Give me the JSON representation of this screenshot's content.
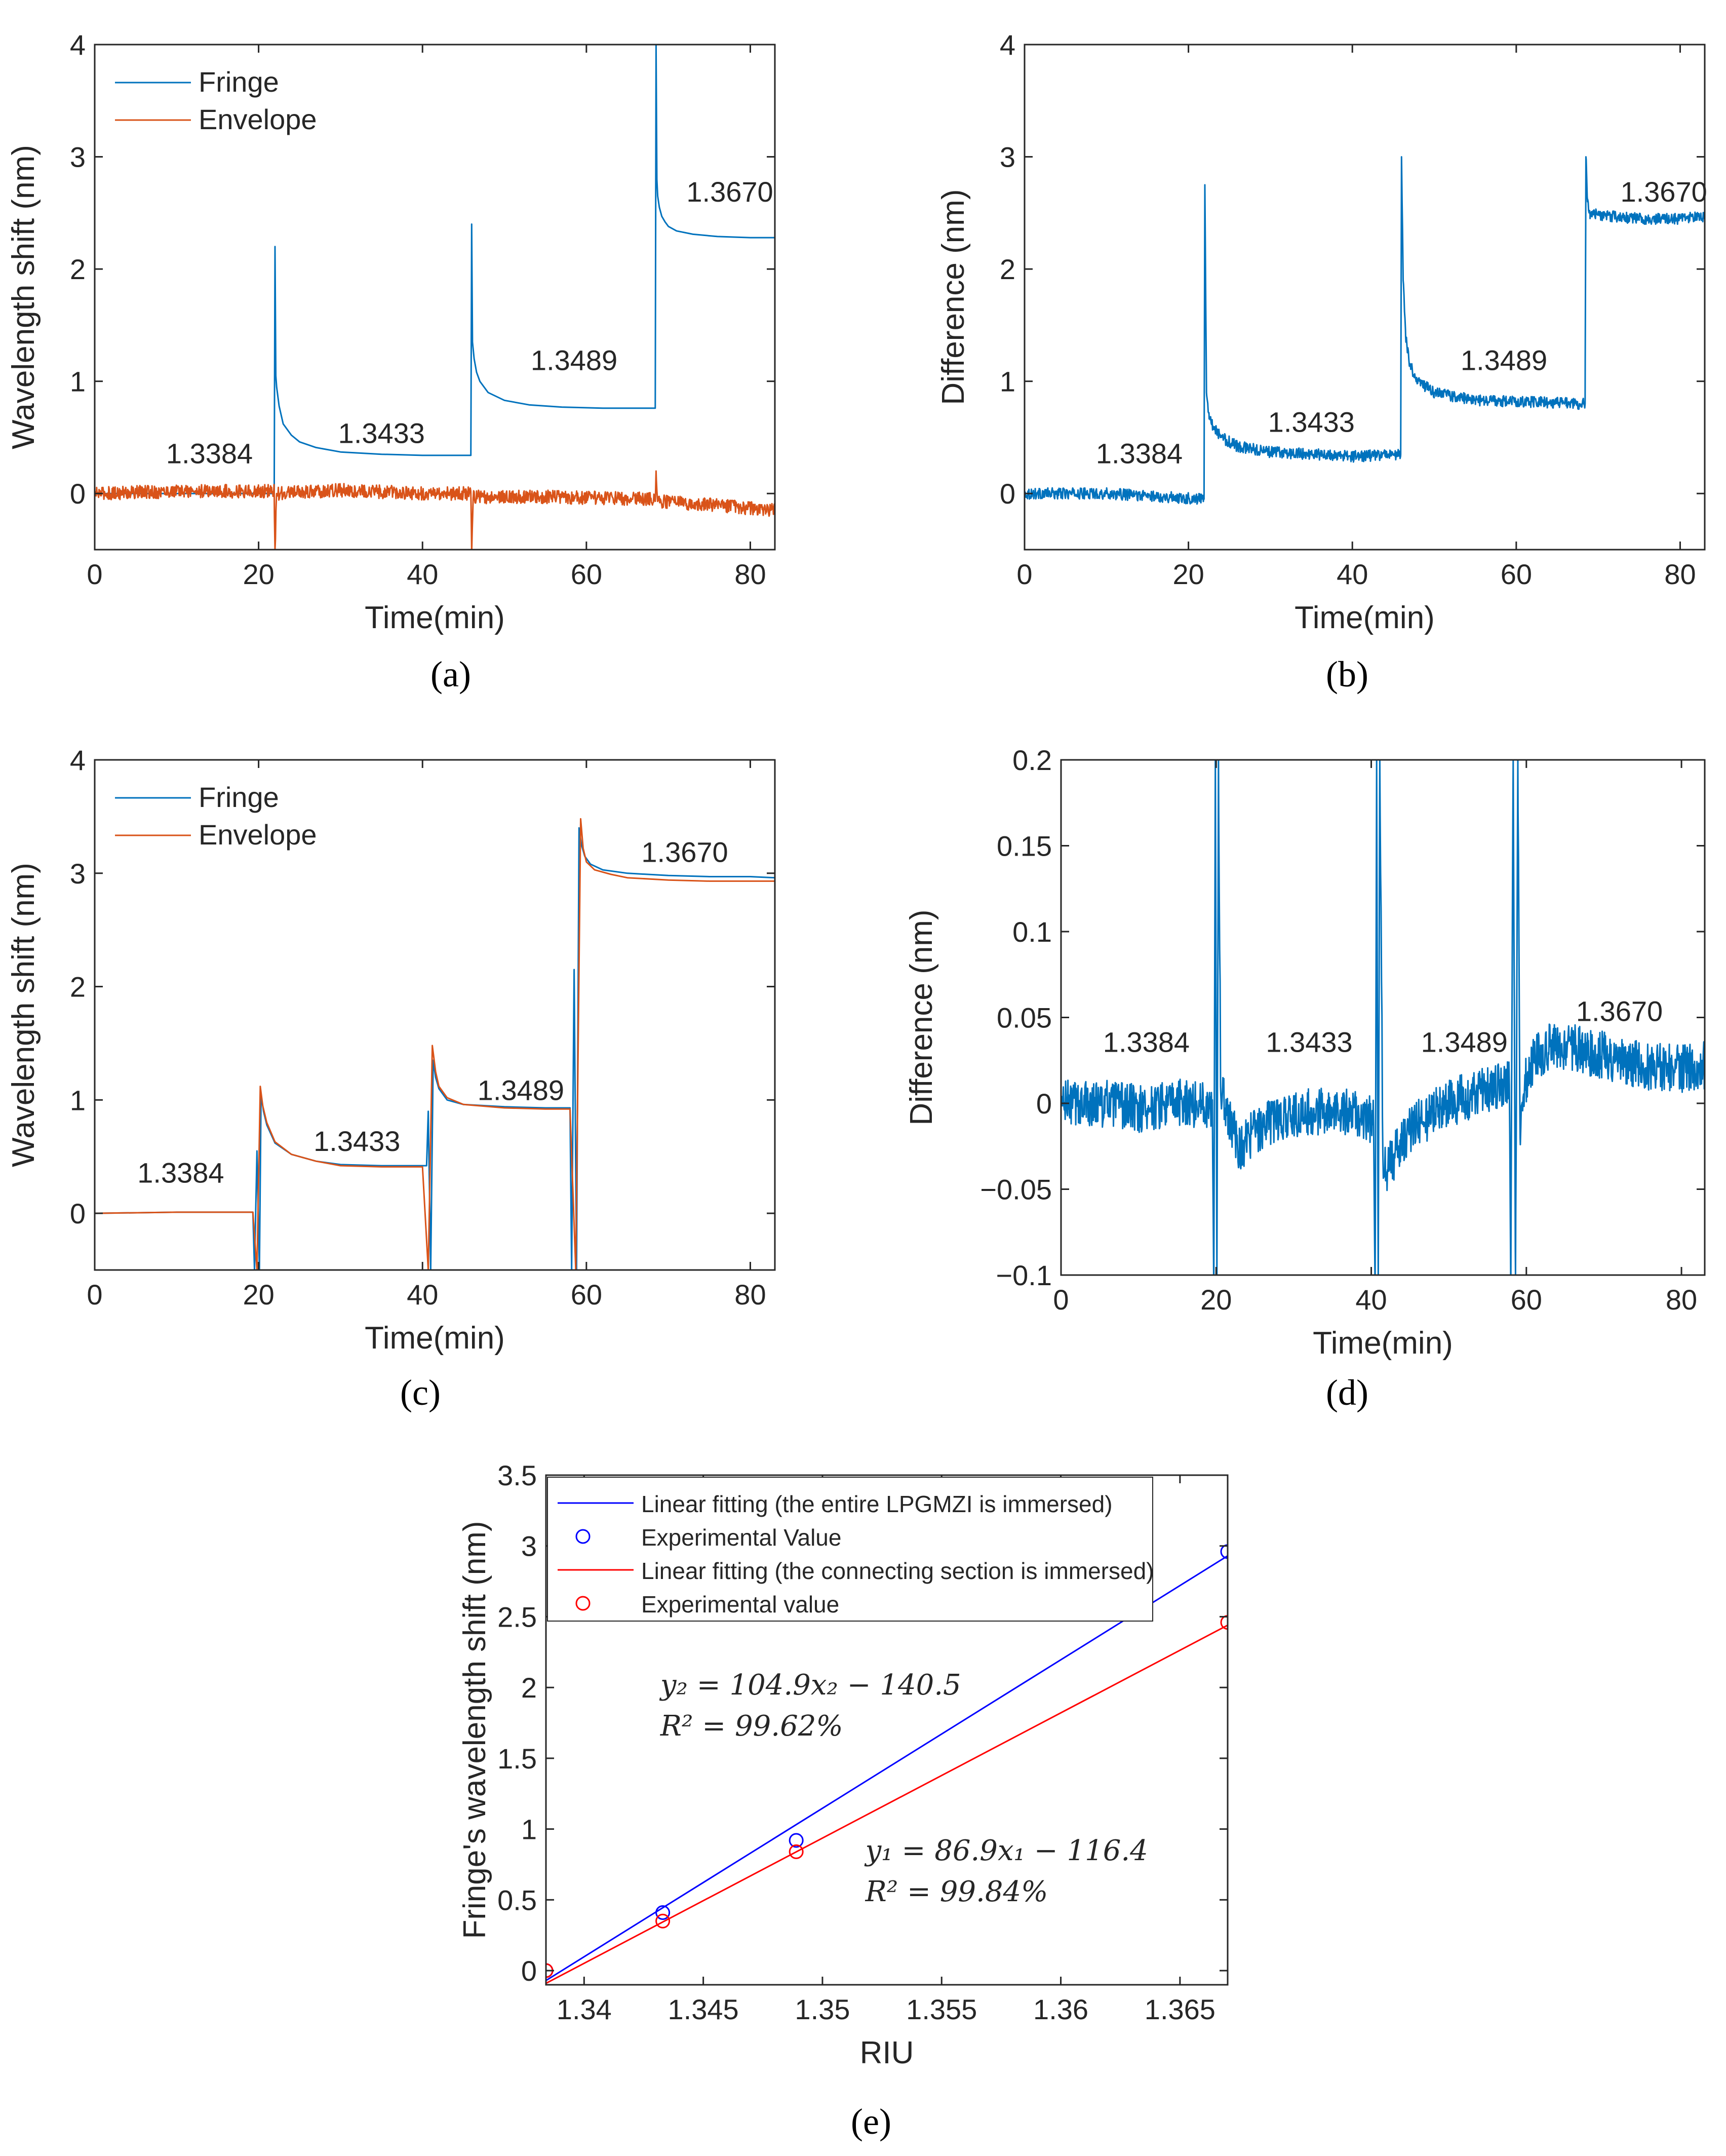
{
  "figure": {
    "captions": [
      {
        "open": "(",
        "letter": "a",
        "close": ")"
      },
      {
        "open": "(",
        "letter": "b",
        "close": ")"
      },
      {
        "open": "(",
        "letter": "c",
        "close": ")"
      },
      {
        "open": "(",
        "letter": "d",
        "close": ")"
      },
      {
        "open": "(",
        "letter": "e",
        "close": ")"
      }
    ]
  },
  "chart_data": [
    {
      "id": "a",
      "type": "line",
      "xlabel": "Time(min)",
      "ylabel": "Wavelength shift (nm)",
      "xlim": [
        0,
        83
      ],
      "ylim": [
        -0.5,
        4
      ],
      "xticks": [
        0,
        20,
        40,
        60,
        80
      ],
      "yticks": [
        0,
        1,
        2,
        3,
        4
      ],
      "grid": false,
      "legend": {
        "position": "top-left",
        "entries": [
          "Fringe",
          "Envelope"
        ]
      },
      "annotations": [
        {
          "text": "1.3384",
          "x": 14,
          "y": 0.27
        },
        {
          "text": "1.3433",
          "x": 35,
          "y": 0.45
        },
        {
          "text": "1.3489",
          "x": 58.5,
          "y": 1.1
        },
        {
          "text": "1.3670",
          "x": 77.5,
          "y": 2.6
        }
      ],
      "series": [
        {
          "name": "Fringe",
          "color": "#0072BD",
          "x": [
            0,
            21.9,
            22.0,
            22.1,
            22.2,
            22.5,
            23,
            24,
            25,
            27,
            30,
            35,
            40,
            45.9,
            46.0,
            46.1,
            46.3,
            46.6,
            47,
            48,
            50,
            53,
            57,
            62,
            67,
            68.4,
            68.5,
            68.6,
            68.7,
            68.9,
            69.2,
            69.6,
            70,
            71,
            73,
            76,
            80,
            83
          ],
          "y": [
            0,
            0,
            2.2,
            1.05,
            0.95,
            0.78,
            0.62,
            0.52,
            0.46,
            0.41,
            0.37,
            0.35,
            0.34,
            0.34,
            2.4,
            1.35,
            1.2,
            1.08,
            1.0,
            0.9,
            0.83,
            0.79,
            0.77,
            0.76,
            0.76,
            0.76,
            4.0,
            2.8,
            2.65,
            2.55,
            2.47,
            2.42,
            2.38,
            2.34,
            2.31,
            2.29,
            2.28,
            2.28
          ]
        },
        {
          "name": "Envelope",
          "color": "#D95319",
          "x": [
            0,
            10,
            21.9,
            22.0,
            22.2,
            30,
            40,
            45.9,
            46.0,
            46.2,
            55,
            68.4,
            68.5,
            68.7,
            75,
            83
          ],
          "y": [
            0.0,
            0.02,
            0.02,
            -0.5,
            0.0,
            0.03,
            0.0,
            0.0,
            -0.5,
            -0.03,
            -0.03,
            -0.05,
            0.2,
            -0.07,
            -0.1,
            -0.15
          ]
        }
      ]
    },
    {
      "id": "b",
      "type": "line",
      "xlabel": "Time(min)",
      "ylabel": "Difference (nm)",
      "xlim": [
        0,
        83
      ],
      "ylim": [
        -0.5,
        4
      ],
      "xticks": [
        0,
        20,
        40,
        60,
        80
      ],
      "yticks": [
        0,
        1,
        2,
        3,
        4
      ],
      "grid": false,
      "annotations": [
        {
          "text": "1.3384",
          "x": 14,
          "y": 0.27
        },
        {
          "text": "1.3433",
          "x": 35,
          "y": 0.55
        },
        {
          "text": "1.3489",
          "x": 58.5,
          "y": 1.1
        },
        {
          "text": "1.3670",
          "x": 78,
          "y": 2.6
        }
      ],
      "series": [
        {
          "name": "Difference",
          "color": "#0072BD",
          "x": [
            0,
            10,
            21.9,
            22.0,
            22.2,
            22.5,
            23,
            24,
            26,
            30,
            35,
            40,
            45.9,
            46.0,
            46.2,
            46.5,
            47,
            48,
            50,
            55,
            60,
            68.4,
            68.5,
            68.7,
            69,
            70,
            75,
            80,
            83
          ],
          "y": [
            0,
            0.0,
            -0.05,
            2.75,
            0.9,
            0.72,
            0.6,
            0.5,
            0.42,
            0.37,
            0.35,
            0.33,
            0.35,
            3.0,
            1.9,
            1.4,
            1.15,
            1.0,
            0.9,
            0.83,
            0.82,
            0.8,
            3.0,
            2.6,
            2.5,
            2.48,
            2.45,
            2.45,
            2.47
          ]
        }
      ]
    },
    {
      "id": "c",
      "type": "line",
      "xlabel": "Time(min)",
      "ylabel": "Wavelength shift (nm)",
      "xlim": [
        0,
        83
      ],
      "ylim": [
        -0.5,
        4
      ],
      "xticks": [
        0,
        20,
        40,
        60,
        80
      ],
      "yticks": [
        0,
        1,
        2,
        3,
        4
      ],
      "grid": false,
      "legend": {
        "position": "top-left",
        "entries": [
          "Fringe",
          "Envelope"
        ]
      },
      "annotations": [
        {
          "text": "1.3384",
          "x": 10.5,
          "y": 0.27
        },
        {
          "text": "1.3433",
          "x": 32,
          "y": 0.55
        },
        {
          "text": "1.3489",
          "x": 52,
          "y": 1.0
        },
        {
          "text": "1.3670",
          "x": 72,
          "y": 3.1
        }
      ],
      "series": [
        {
          "name": "Fringe",
          "color": "#0072BD",
          "x": [
            0,
            10,
            19.3,
            19.5,
            19.8,
            20.1,
            20.3,
            20.6,
            21,
            22,
            24,
            27,
            30,
            35,
            40,
            40.5,
            40.7,
            41.0,
            41.3,
            41.6,
            42,
            43,
            45,
            50,
            55,
            58,
            58.2,
            58.5,
            58.8,
            59.1,
            59.4,
            59.8,
            60.5,
            62,
            65,
            70,
            75,
            80,
            83
          ],
          "y": [
            0,
            0.01,
            0.01,
            -0.5,
            0.55,
            -0.5,
            1.05,
            0.9,
            0.78,
            0.62,
            0.52,
            0.46,
            0.43,
            0.42,
            0.42,
            0.42,
            0.9,
            -0.5,
            1.35,
            1.2,
            1.1,
            1.0,
            0.96,
            0.94,
            0.93,
            0.93,
            -0.5,
            2.15,
            -0.5,
            3.4,
            3.25,
            3.15,
            3.08,
            3.03,
            3.0,
            2.98,
            2.97,
            2.97,
            2.96
          ]
        },
        {
          "name": "Envelope",
          "color": "#D95319",
          "x": [
            0,
            10,
            19.3,
            19.8,
            20.2,
            20.5,
            21,
            22,
            24,
            27,
            30,
            35,
            40,
            40.7,
            41.2,
            41.6,
            42,
            43,
            45,
            50,
            55,
            58,
            58.7,
            59.3,
            59.6,
            60,
            61,
            63,
            65,
            70,
            75,
            80,
            83
          ],
          "y": [
            0,
            0.01,
            0.01,
            -0.5,
            1.12,
            0.95,
            0.8,
            0.63,
            0.52,
            0.46,
            0.42,
            0.41,
            0.41,
            -0.5,
            1.48,
            1.25,
            1.12,
            1.02,
            0.96,
            0.93,
            0.92,
            0.92,
            -0.5,
            3.48,
            3.22,
            3.1,
            3.03,
            2.99,
            2.96,
            2.94,
            2.93,
            2.93,
            2.93
          ]
        }
      ]
    },
    {
      "id": "d",
      "type": "line",
      "xlabel": "Time(min)",
      "ylabel": "Difference (nm)",
      "xlim": [
        0,
        83
      ],
      "ylim": [
        -0.1,
        0.2
      ],
      "xticks": [
        0,
        20,
        40,
        60,
        80
      ],
      "yticks": [
        -0.1,
        -0.05,
        0,
        0.05,
        0.1,
        0.15,
        0.2
      ],
      "yticklabels": [
        "−0.1",
        "−0.05",
        "0",
        "0.05",
        "0.1",
        "0.15",
        "0.2"
      ],
      "grid": false,
      "annotations": [
        {
          "text": "1.3384",
          "x": 11,
          "y": 0.03
        },
        {
          "text": "1.3433",
          "x": 32,
          "y": 0.03
        },
        {
          "text": "1.3489",
          "x": 52,
          "y": 0.03
        },
        {
          "text": "1.3670",
          "x": 72,
          "y": 0.048
        }
      ],
      "series": [
        {
          "name": "Difference",
          "color": "#0072BD",
          "x": [
            0,
            5,
            10,
            15,
            19.5,
            19.7,
            19.9,
            20.1,
            20.3,
            20.6,
            21.5,
            23,
            27,
            32,
            37,
            40.3,
            40.5,
            40.7,
            40.9,
            41.1,
            41.5,
            42,
            43,
            45,
            50,
            55,
            57.8,
            58,
            58.3,
            58.6,
            58.9,
            59.2,
            60,
            61,
            63,
            65,
            70,
            75,
            80,
            83
          ],
          "y": [
            0,
            0.0,
            -0.003,
            0.0,
            0.0,
            -0.1,
            0.2,
            -0.1,
            0.2,
            0.005,
            -0.005,
            -0.025,
            -0.01,
            -0.005,
            -0.005,
            -0.01,
            -0.1,
            0.2,
            -0.1,
            0.2,
            -0.03,
            -0.04,
            -0.03,
            -0.015,
            0.0,
            0.008,
            0.012,
            -0.1,
            0.2,
            -0.1,
            0.2,
            -0.02,
            0.015,
            0.025,
            0.033,
            0.033,
            0.028,
            0.022,
            0.02,
            0.022
          ]
        }
      ]
    },
    {
      "id": "e",
      "type": "scatter",
      "xlabel": "RIU",
      "ylabel": "Fringe's wavelength shift (nm)",
      "xlim": [
        1.3384,
        1.367
      ],
      "ylim": [
        -0.1,
        3.5
      ],
      "xticks": [
        1.34,
        1.345,
        1.35,
        1.355,
        1.36,
        1.365
      ],
      "xticklabels": [
        "1.34",
        "1.345",
        "1.35",
        "1.355",
        "1.36",
        "1.365"
      ],
      "yticks": [
        0,
        0.5,
        1,
        1.5,
        2,
        2.5,
        3,
        3.5
      ],
      "yticklabels": [
        "0",
        "0.5",
        "1",
        "1.5",
        "2",
        "2.5",
        "3",
        "3.5"
      ],
      "grid": false,
      "legend": {
        "position": "top-left",
        "entries": [
          "Linear fitting (the entire LPGMZI is immersed)",
          "Experimental Value",
          "Linear fitting (the connecting section is immersed)",
          "Experimental value"
        ]
      },
      "equations": [
        {
          "text": "y₂ = 104.9x₂ − 140.5",
          "x": 1.3432,
          "y": 1.95
        },
        {
          "text": "R² = 99.62%",
          "x": 1.3432,
          "y": 1.66
        },
        {
          "text": "y₁ = 86.9x₁ − 116.4",
          "x": 1.3518,
          "y": 0.78
        },
        {
          "text": "R² = 99.84%",
          "x": 1.3518,
          "y": 0.49
        }
      ],
      "series": [
        {
          "name": "Linear fitting (the entire LPGMZI is immersed)",
          "color": "#0000FF",
          "kind": "line",
          "x": [
            1.3384,
            1.367
          ],
          "y": [
            -0.07,
            2.93
          ]
        },
        {
          "name": "Experimental Value",
          "color": "#0000FF",
          "kind": "markers",
          "x": [
            1.3384,
            1.3433,
            1.3489,
            1.367
          ],
          "y": [
            0.0,
            0.41,
            0.92,
            2.96
          ]
        },
        {
          "name": "Linear fitting (the connecting section is immersed)",
          "color": "#FF0000",
          "kind": "line",
          "x": [
            1.3384,
            1.367
          ],
          "y": [
            -0.09,
            2.44
          ]
        },
        {
          "name": "Experimental value",
          "color": "#FF0000",
          "kind": "markers",
          "x": [
            1.3384,
            1.3433,
            1.3489,
            1.367
          ],
          "y": [
            0.0,
            0.35,
            0.84,
            2.46
          ]
        }
      ]
    }
  ]
}
